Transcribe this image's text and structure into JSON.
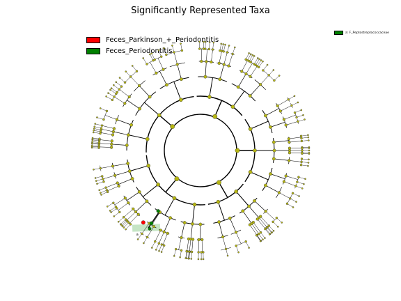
{
  "title": "Significantly Represented Taxa",
  "legend": [
    {
      "label": "Feces_Parkinson_+_Periodontitis",
      "color": "#ff0000"
    },
    {
      "label": "Feces_Periodontitis",
      "color": "#008000"
    }
  ],
  "key": {
    "label": "a: F_Peptostreptococcaceae",
    "color": "#008000"
  },
  "highlight_label": "a",
  "colors": {
    "node": "#b5b512",
    "nonsig": "#b5b512",
    "red": "#ff0000",
    "green": "#008000",
    "clade_bg": "#9ed49e"
  }
}
